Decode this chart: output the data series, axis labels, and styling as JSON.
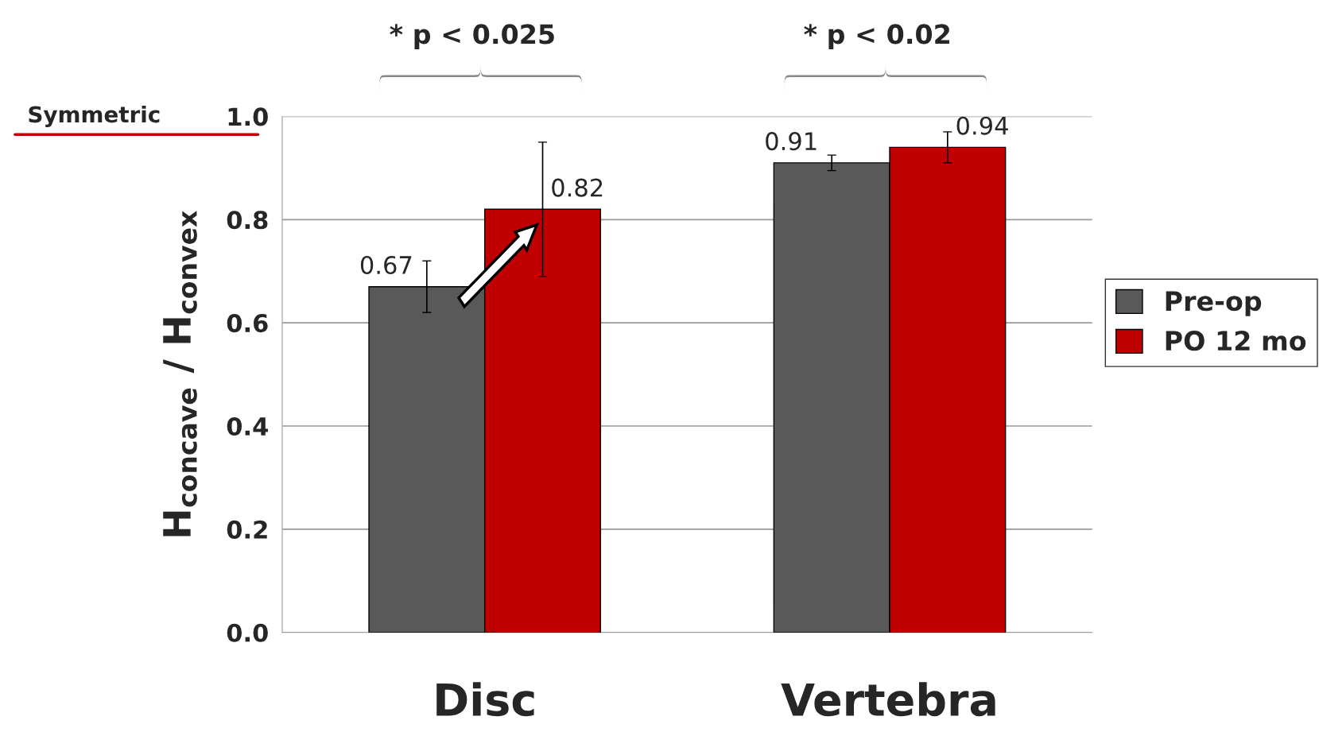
{
  "chart_data": {
    "type": "bar",
    "categories": [
      "Disc",
      "Vertebra"
    ],
    "ylabel": "H$_{concave}$ / H$_{convex}$",
    "series": [
      {
        "name": "Pre-op",
        "color": "#595959",
        "values": [
          0.67,
          0.91
        ],
        "errors": [
          0.05,
          0.015
        ]
      },
      {
        "name": "PO 12 mo",
        "color": "#c00000",
        "values": [
          0.82,
          0.94
        ],
        "errors": [
          0.13,
          0.03
        ]
      }
    ],
    "ylim": [
      0,
      1.0
    ],
    "yticks": [
      {
        "value": 0,
        "label": "0.0"
      },
      0.2,
      0.4,
      0.6,
      0.8,
      {
        "value": 1.0,
        "label": "1.0"
      }
    ],
    "grid": "y",
    "legend": "right",
    "data_labels": true,
    "annotations": [
      "* p < 0.025",
      "* p < 0.02",
      "Symmetric"
    ]
  }
}
